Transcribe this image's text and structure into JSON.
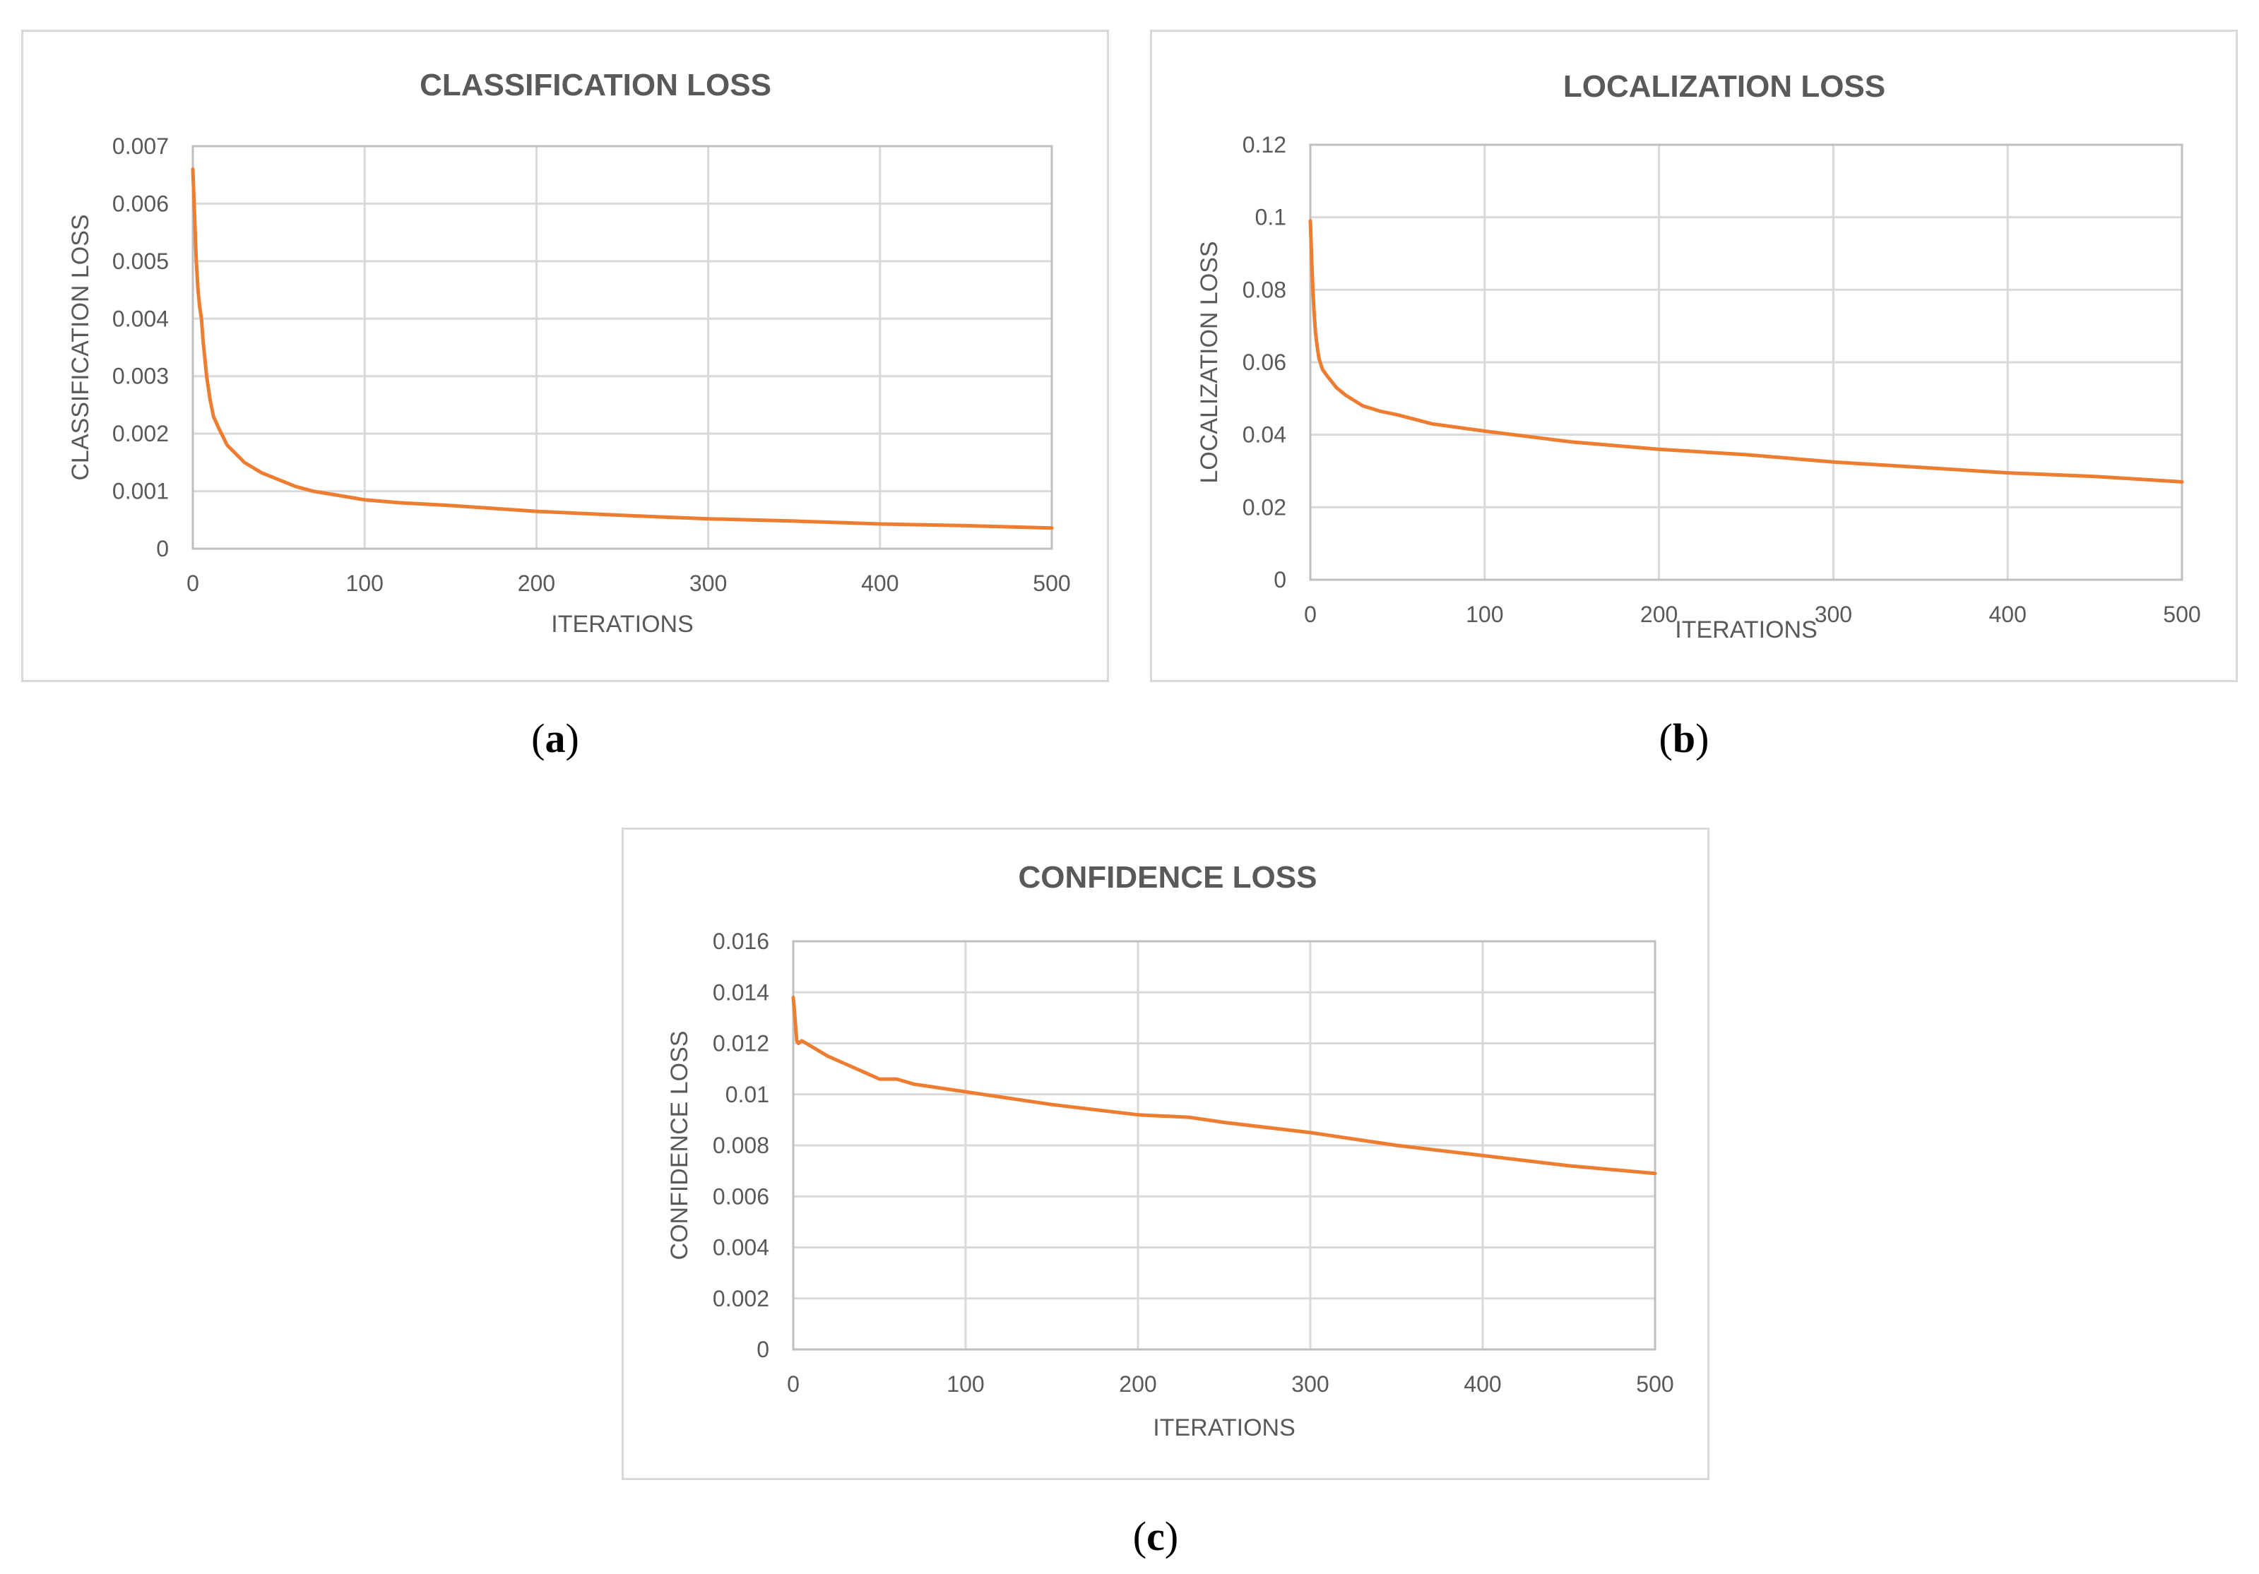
{
  "series_color": "#ED7D31",
  "chart_data": [
    {
      "type": "line",
      "title": "CLASSIFICATION LOSS",
      "xlabel": "ITERATIONS",
      "ylabel": "CLASSIFICATION LOSS",
      "xlim": [
        0,
        500
      ],
      "ylim": [
        0,
        0.007
      ],
      "xticks": [
        "0",
        "100",
        "200",
        "300",
        "400",
        "500"
      ],
      "yticks": [
        "0",
        "0.001",
        "0.002",
        "0.003",
        "0.004",
        "0.005",
        "0.006",
        "0.007"
      ],
      "grid": true,
      "series": [
        {
          "x": [
            0,
            1,
            2,
            3,
            4,
            5,
            6,
            8,
            10,
            12,
            15,
            20,
            25,
            30,
            40,
            50,
            60,
            70,
            80,
            100,
            120,
            150,
            200,
            250,
            300,
            350,
            400,
            450,
            500
          ],
          "values": [
            0.0066,
            0.0058,
            0.005,
            0.0045,
            0.0042,
            0.004,
            0.0036,
            0.003,
            0.0026,
            0.0023,
            0.0021,
            0.0018,
            0.00165,
            0.0015,
            0.00132,
            0.0012,
            0.00108,
            0.001,
            0.00095,
            0.00085,
            0.0008,
            0.00075,
            0.00065,
            0.00058,
            0.00052,
            0.00048,
            0.00043,
            0.0004,
            0.00036
          ]
        }
      ],
      "caption": "a"
    },
    {
      "type": "line",
      "title": "LOCALIZATION LOSS",
      "xlabel": "ITERATIONS",
      "ylabel": "LOCALIZATION LOSS",
      "xlim": [
        0,
        500
      ],
      "ylim": [
        0,
        0.12
      ],
      "xticks": [
        "0",
        "100",
        "200",
        "300",
        "400",
        "500"
      ],
      "yticks": [
        "0",
        "0.02",
        "0.04",
        "0.06",
        "0.08",
        "0.1",
        "0.12"
      ],
      "grid": true,
      "series": [
        {
          "x": [
            0,
            1,
            2,
            3,
            4,
            5,
            7,
            10,
            15,
            20,
            30,
            40,
            50,
            70,
            100,
            150,
            200,
            250,
            300,
            350,
            400,
            450,
            500
          ],
          "values": [
            0.099,
            0.085,
            0.075,
            0.068,
            0.064,
            0.061,
            0.058,
            0.056,
            0.053,
            0.051,
            0.048,
            0.0465,
            0.0455,
            0.043,
            0.041,
            0.038,
            0.036,
            0.0345,
            0.0325,
            0.031,
            0.0295,
            0.0285,
            0.027
          ]
        }
      ],
      "caption": "b"
    },
    {
      "type": "line",
      "title": "CONFIDENCE LOSS",
      "xlabel": "ITERATIONS",
      "ylabel": "CONFIDENCE LOSS",
      "xlim": [
        0,
        500
      ],
      "ylim": [
        0,
        0.016
      ],
      "xticks": [
        "0",
        "100",
        "200",
        "300",
        "400",
        "500"
      ],
      "yticks": [
        "0",
        "0.002",
        "0.004",
        "0.006",
        "0.008",
        "0.01",
        "0.012",
        "0.014",
        "0.016"
      ],
      "grid": true,
      "series": [
        {
          "x": [
            0,
            1,
            2,
            3,
            5,
            10,
            20,
            30,
            40,
            50,
            60,
            70,
            80,
            100,
            120,
            150,
            200,
            230,
            250,
            300,
            350,
            400,
            450,
            500
          ],
          "values": [
            0.0138,
            0.013,
            0.0121,
            0.012,
            0.0121,
            0.0119,
            0.0115,
            0.0112,
            0.0109,
            0.0106,
            0.0106,
            0.0104,
            0.0103,
            0.0101,
            0.0099,
            0.0096,
            0.0092,
            0.0091,
            0.0089,
            0.0085,
            0.008,
            0.0076,
            0.0072,
            0.0069
          ]
        }
      ],
      "caption": "c"
    }
  ]
}
